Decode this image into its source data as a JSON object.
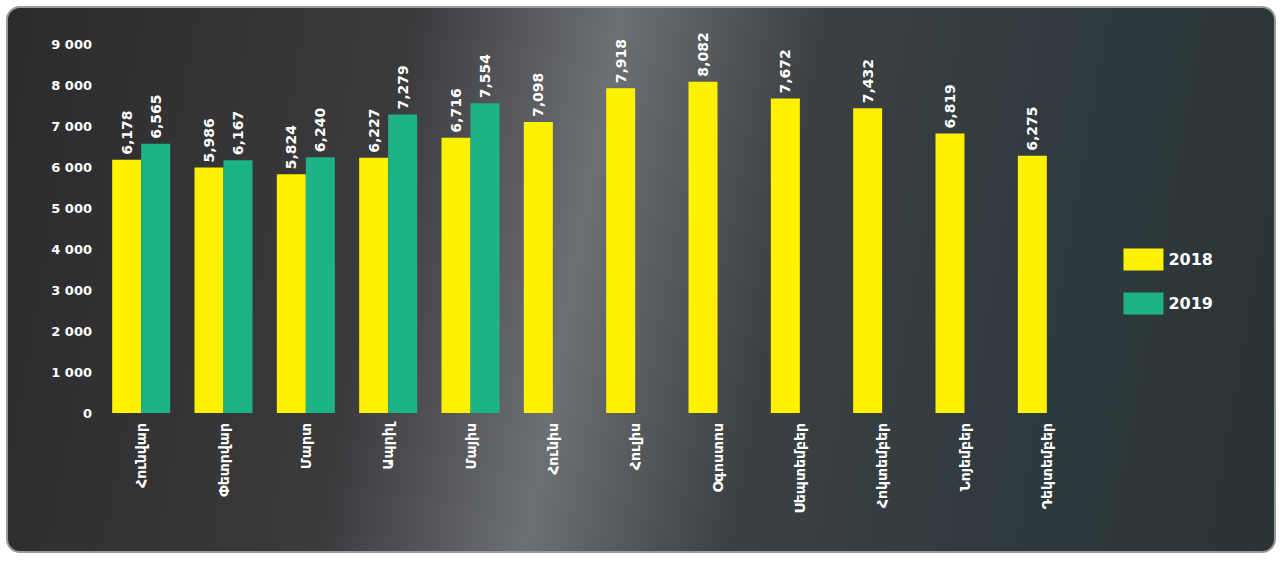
{
  "chart_data": {
    "type": "bar",
    "categories": [
      "Հունվար",
      "Փետրվար",
      "Մարտ",
      "Ապրիլ",
      "Մայիս",
      "Հունիս",
      "Հուլիս",
      "Օգոստոս",
      "Սեպտեմբեր",
      "Հոկտեմբեր",
      "Նոյեմբեր",
      "Դեկտեմբեր"
    ],
    "series": [
      {
        "name": "2018",
        "color": "#fff200",
        "values": [
          6178,
          5986,
          5824,
          6227,
          6716,
          7098,
          7918,
          8082,
          7672,
          7432,
          6819,
          6275
        ],
        "value_labels": [
          "6,178",
          "5,986",
          "5,824",
          "6,227",
          "6,716",
          "7,098",
          "7,918",
          "8,082",
          "7,672",
          "7,432",
          "6,819",
          "6,275"
        ]
      },
      {
        "name": "2019",
        "color": "#1db386",
        "values": [
          6565,
          6167,
          6240,
          7279,
          7554,
          null,
          null,
          null,
          null,
          null,
          null,
          null
        ],
        "value_labels": [
          "6,565",
          "6,167",
          "6,240",
          "7,279",
          "7,554",
          null,
          null,
          null,
          null,
          null,
          null,
          null
        ]
      }
    ],
    "ylim": [
      0,
      9000
    ],
    "yticks": [
      0,
      {
        "value": 1000,
        "label": "1 000"
      },
      {
        "value": 2000,
        "label": "2 000"
      },
      {
        "value": 3000,
        "label": "3 000"
      },
      {
        "value": 4000,
        "label": "4 000"
      },
      {
        "value": 5000,
        "label": "5 000"
      },
      {
        "value": 6000,
        "label": "6 000"
      },
      {
        "value": 7000,
        "label": "7 000"
      },
      {
        "value": 8000,
        "label": "8 000"
      },
      {
        "value": 9000,
        "label": "9 000"
      }
    ],
    "grid": false,
    "legend": "right",
    "data_labels": true
  }
}
